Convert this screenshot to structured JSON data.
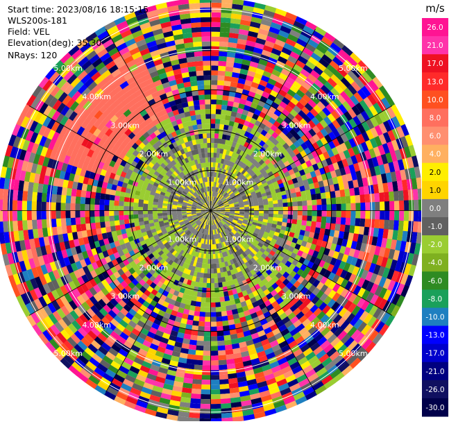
{
  "info": {
    "start_time": "Start time: 2023/08/16 18:15:15",
    "instrument": "WLS200s-181",
    "field": "Field: VEL",
    "elevation": "Elevation(deg): 35.30",
    "nrays": "NRays: 120"
  },
  "chart_data": {
    "type": "heatmap",
    "projection": "polar-ppi",
    "units_label": "m/s",
    "range_rings_km": [
      1,
      2,
      3,
      4,
      5
    ],
    "ring_labels": [
      "1.00km",
      "2.00km",
      "3.00km",
      "4.00km",
      "5.00km"
    ],
    "max_range_km": 5.2,
    "n_rays": 120,
    "colorbar": {
      "ticks": [
        "26.0",
        "21.0",
        "17.0",
        "13.0",
        "10.0",
        "8.0",
        "6.0",
        "4.0",
        "2.0",
        "1.0",
        "0.0",
        "-1.0",
        "-2.0",
        "-4.0",
        "-6.0",
        "-8.0",
        "-10.0",
        "-13.0",
        "-17.0",
        "-21.0",
        "-26.0",
        "-30.0"
      ],
      "colors": [
        "#ff1493",
        "#ff33aa",
        "#ee1122",
        "#ff2a2a",
        "#ff5020",
        "#ff6f5e",
        "#ff8f70",
        "#ffb060",
        "#ffee00",
        "#ffd400",
        "#7f7f7f",
        "#606060",
        "#9acd32",
        "#7fb020",
        "#2e8b22",
        "#1aa05a",
        "#1e7fc0",
        "#0000ff",
        "#0000cc",
        "#000080",
        "#101060",
        "#00004a"
      ]
    }
  }
}
